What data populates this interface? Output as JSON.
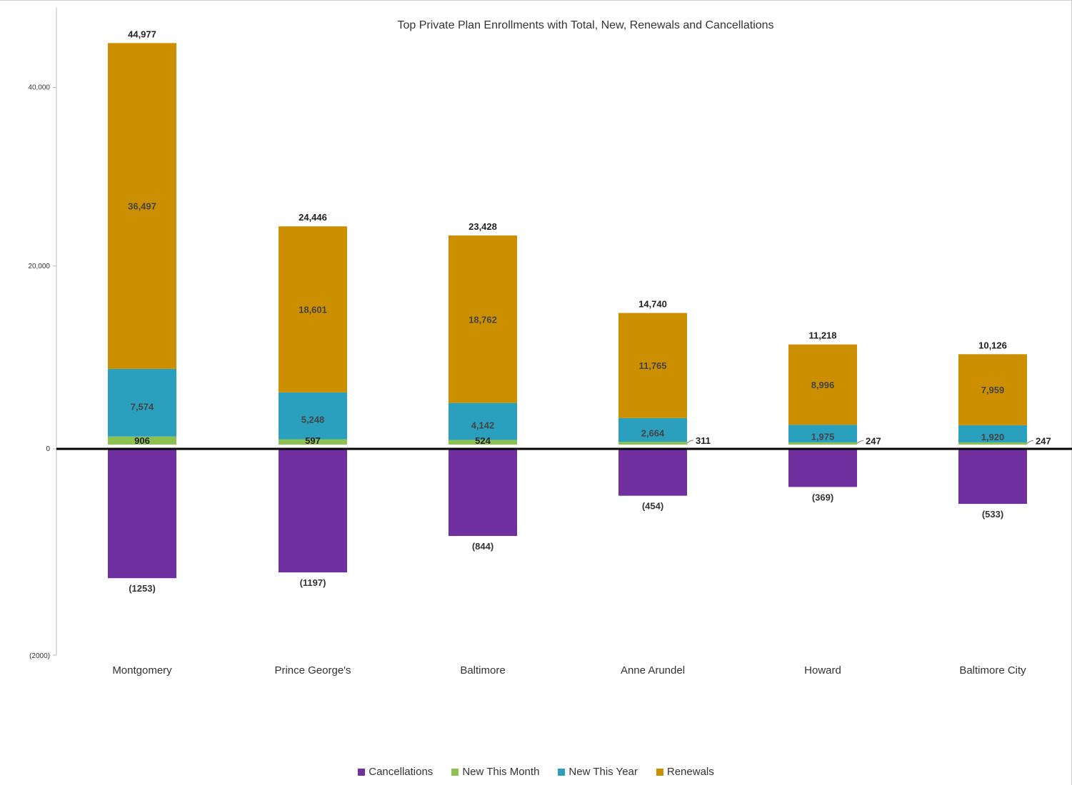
{
  "chart_data": {
    "type": "bar",
    "title": "Top Private Plan Enrollments with Total, New, Renewals and Cancellations",
    "categories": [
      "Montgomery",
      "Prince George's",
      "Baltimore",
      "Anne Arundel",
      "Howard",
      "Baltimore City"
    ],
    "series": [
      {
        "name": "Cancellations",
        "color": "#7030a0",
        "values": [
          -1253,
          -1197,
          -844,
          -454,
          -369,
          -533
        ]
      },
      {
        "name": "New This Month",
        "color": "#8dc152",
        "values": [
          906,
          597,
          524,
          311,
          247,
          247
        ]
      },
      {
        "name": "New This Year",
        "color": "#2b9fbe",
        "values": [
          7574,
          5248,
          4142,
          2664,
          1975,
          1920
        ]
      },
      {
        "name": "Renewals",
        "color": "#cc8f00",
        "values": [
          36497,
          18601,
          18762,
          11765,
          8996,
          7959
        ]
      }
    ],
    "totals": [
      44977,
      24446,
      23428,
      14740,
      11218,
      10126
    ],
    "data_labels": {
      "totals": [
        "44,977",
        "24,446",
        "23,428",
        "14,740",
        "11,218",
        "10,126"
      ],
      "renewals": [
        "36,497",
        "18,601",
        "18,762",
        "11,765",
        "8,996",
        "7,959"
      ],
      "new_this_year": [
        "7,574",
        "5,248",
        "4,142",
        "2,664",
        "1,975",
        "1,920"
      ],
      "new_this_month": [
        "906",
        "597",
        "524",
        "311",
        "247",
        "247"
      ],
      "cancellations": [
        "(1253)",
        "(1197)",
        "(844)",
        "(454)",
        "(369)",
        "(533)"
      ]
    },
    "positive_axis": {
      "range": [
        0,
        45000
      ],
      "ticks": [
        0,
        20000,
        40000
      ],
      "tick_labels": [
        "0",
        "20,000",
        "40,000"
      ]
    },
    "negative_axis": {
      "range": [
        0,
        -2000
      ],
      "ticks": [
        -2000
      ],
      "tick_labels": [
        "(2000)"
      ]
    },
    "legend_position": "bottom",
    "grid": false
  }
}
